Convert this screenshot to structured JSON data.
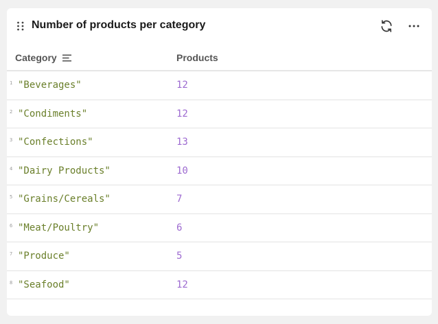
{
  "widget": {
    "title": "Number of products per category",
    "refresh_icon": "refresh-icon",
    "more_icon": "more-horizontal-icon",
    "drag_icon": "drag-handle-icon"
  },
  "table": {
    "columns": [
      {
        "label": "Category",
        "sort_icon": "sort-lines-icon"
      },
      {
        "label": "Products"
      }
    ],
    "rows": [
      {
        "index": "1",
        "category": "\"Beverages\"",
        "products": "12"
      },
      {
        "index": "2",
        "category": "\"Condiments\"",
        "products": "12"
      },
      {
        "index": "3",
        "category": "\"Confections\"",
        "products": "13"
      },
      {
        "index": "4",
        "category": "\"Dairy Products\"",
        "products": "10"
      },
      {
        "index": "5",
        "category": "\"Grains/Cereals\"",
        "products": "7"
      },
      {
        "index": "6",
        "category": "\"Meat/Poultry\"",
        "products": "6"
      },
      {
        "index": "7",
        "category": "\"Produce\"",
        "products": "5"
      },
      {
        "index": "8",
        "category": "\"Seafood\"",
        "products": "12"
      }
    ]
  },
  "colors": {
    "string_value": "#6a7f2a",
    "number_value": "#9d6ad0",
    "header_text": "#555555"
  }
}
